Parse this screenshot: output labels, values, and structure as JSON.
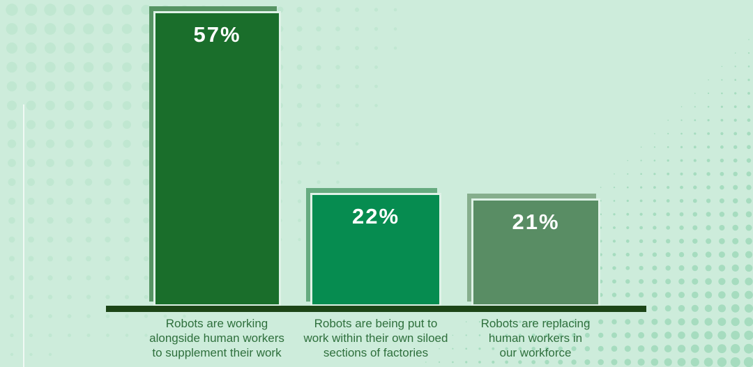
{
  "chart_data": {
    "type": "bar",
    "unit": "%",
    "categories": [
      "Robots are working alongside human workers to supplement their work",
      "Robots are being put to work within their own siloed sections of factories",
      "Robots are replacing human workers in our workforce"
    ],
    "values": [
      57,
      22,
      21
    ],
    "axes_visible": false,
    "grid": false,
    "legend": false,
    "baseline_color": "#1c4517",
    "bars": [
      {
        "value": 57,
        "value_label": "57%",
        "fill": "#1a6e2b",
        "backing": "#569463",
        "label_lines": [
          "Robots are working",
          "alongside human workers",
          "to supplement their work"
        ]
      },
      {
        "value": 22,
        "value_label": "22%",
        "fill": "#068c50",
        "backing": "#66ab80",
        "label_lines": [
          "Robots are being put to",
          "work within their own siloed",
          "sections of factories"
        ]
      },
      {
        "value": 21,
        "value_label": "21%",
        "fill": "#598d64",
        "backing": "#86ae8d",
        "label_lines": [
          "Robots are replacing",
          "human workers in",
          "our workforce"
        ]
      }
    ]
  },
  "theme": {
    "background": "#cdecdb",
    "halftone_left": "#c0e7d1",
    "halftone_right": "#a6dcbf",
    "bar_outline": "#dff2e7",
    "category_text": "#2e6f3c",
    "value_text": "#ffffff"
  }
}
